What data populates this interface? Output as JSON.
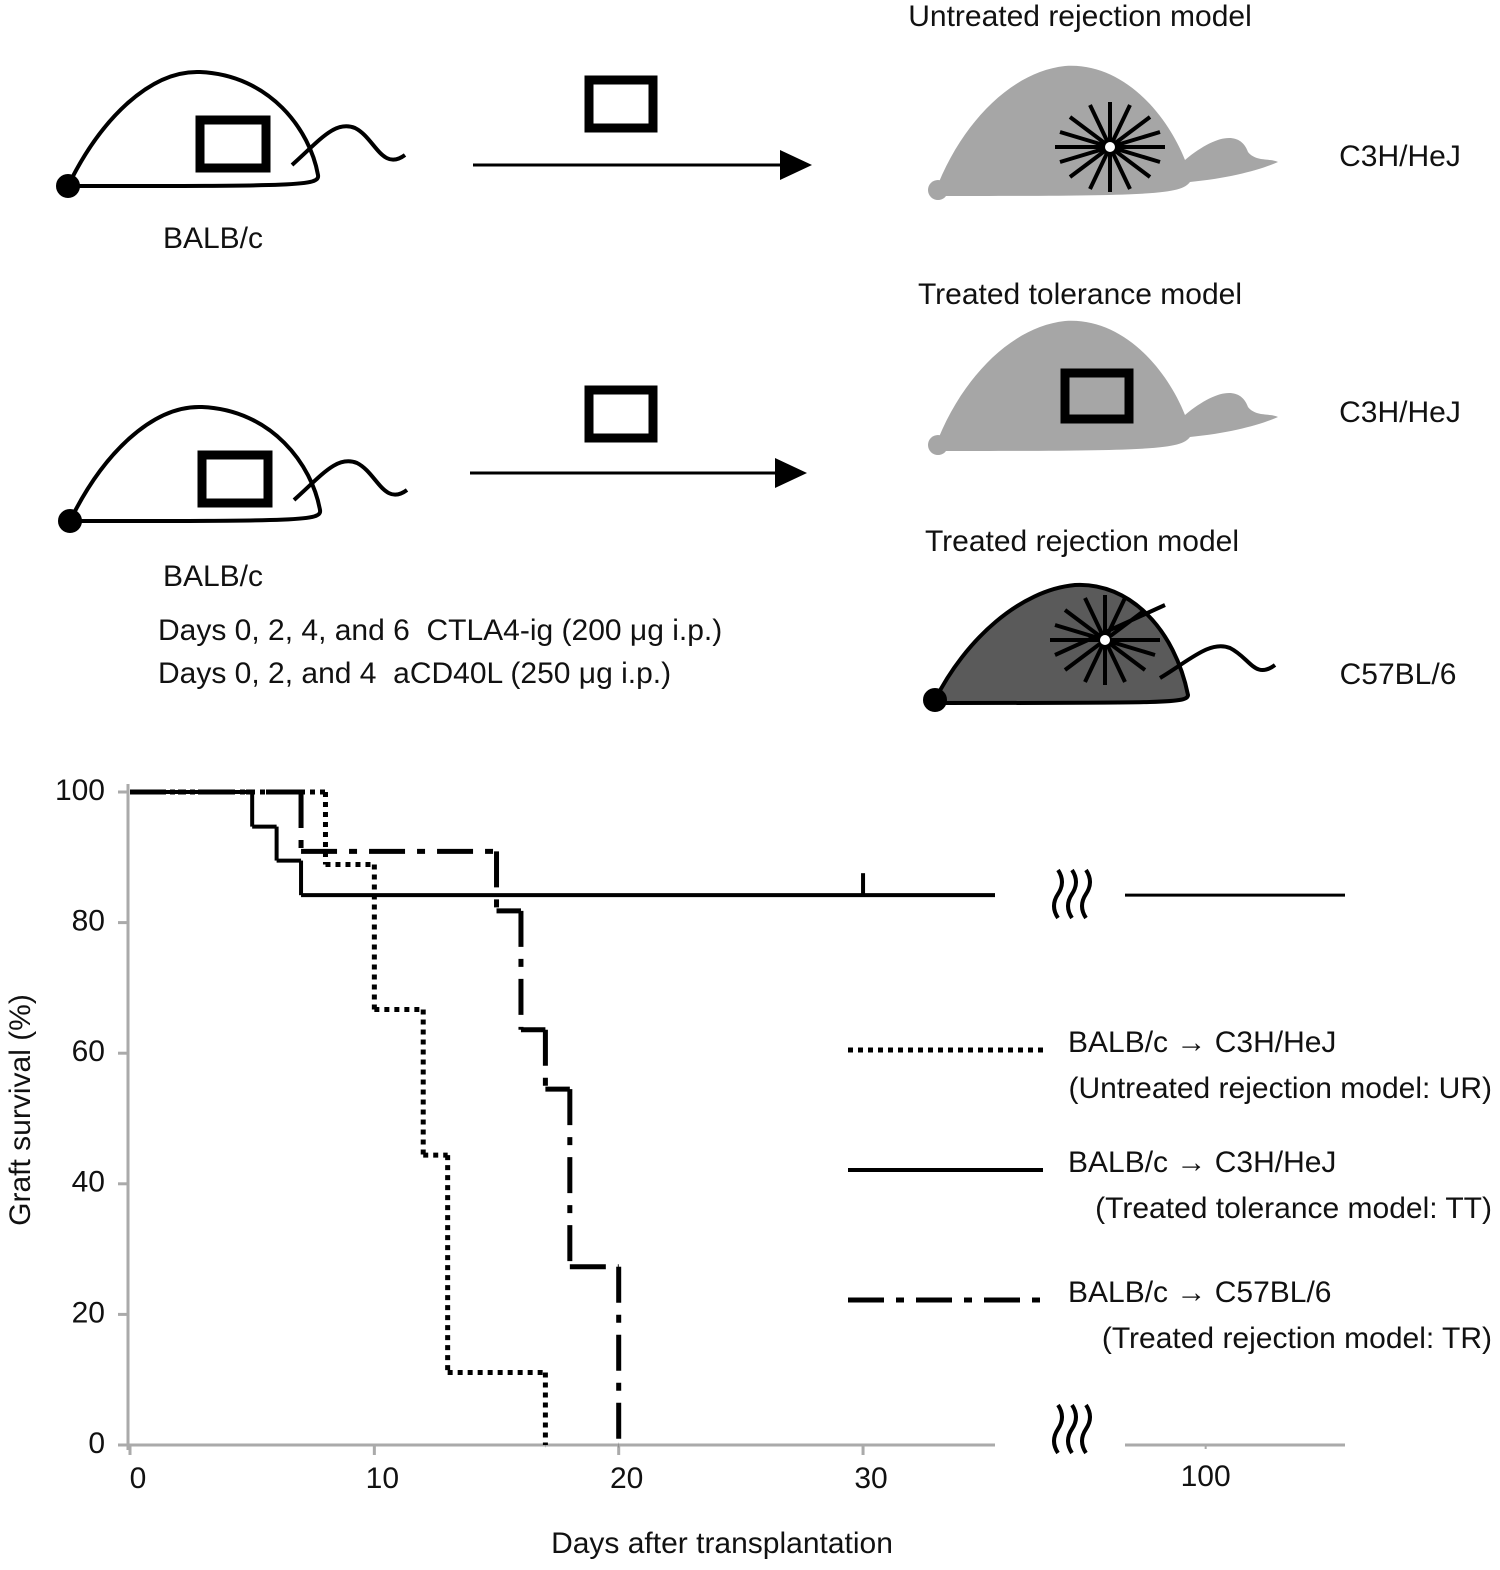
{
  "diagram": {
    "untreated": {
      "title": "Untreated rejection model",
      "donor": "BALB/c",
      "recipient": "C3H/HeJ"
    },
    "tolerance": {
      "title": "Treated tolerance model",
      "donor": "BALB/c",
      "recipient": "C3H/HeJ",
      "treatment": [
        "Days 0, 2, 4, and 6  CTLA4-ig (200 μg i.p.)",
        "Days 0, 2, and 4  aCD40L (250 μg i.p.)"
      ]
    },
    "treated_rejection": {
      "title": "Treated rejection model",
      "recipient": "C57BL/6"
    }
  },
  "chart_data": {
    "type": "line",
    "step": true,
    "xlabel": "Days after transplantation",
    "ylabel": "Graft survival (%)",
    "xlim": [
      0,
      35.4
    ],
    "xticks": [
      0,
      10,
      20,
      30
    ],
    "xbreak": {
      "xlim": [
        96.7,
        105.7
      ],
      "xticks": [
        100
      ]
    },
    "ylim": [
      0,
      100
    ],
    "yticks": [
      0,
      20,
      40,
      60,
      80,
      100
    ],
    "legend": "right",
    "series": [
      {
        "name": "BALB/c → C3H/HeJ",
        "description": "(Untreated rejection model: UR)",
        "color": "#000",
        "dash": "dotted",
        "x": [
          0,
          8,
          10,
          12,
          13,
          17
        ],
        "values": [
          100,
          88.9,
          66.7,
          44.4,
          11.1,
          0
        ]
      },
      {
        "name": "BALB/c → C3H/HeJ",
        "description": "(Treated tolerance model: TT)",
        "color": "#000",
        "dash": "solid",
        "x": [
          0,
          5,
          6,
          7
        ],
        "values": [
          100,
          94.7,
          89.5,
          84.2
        ],
        "censored": [
          30
        ]
      },
      {
        "name": "BALB/c → C57BL/6",
        "description": "(Treated rejection model: TR)",
        "color": "#000",
        "dash": "dashdot",
        "x": [
          0,
          7,
          15,
          16,
          17,
          18,
          20
        ],
        "values": [
          100,
          90.9,
          81.8,
          63.6,
          54.5,
          27.3,
          0
        ]
      }
    ]
  }
}
